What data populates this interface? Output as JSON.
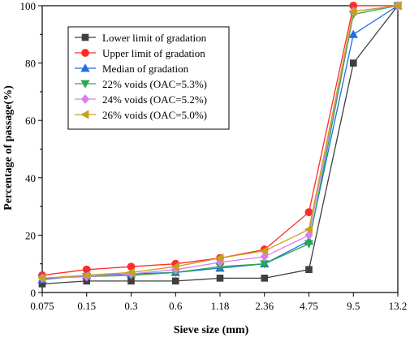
{
  "chart_data": {
    "type": "line",
    "xlabel": "Sieve size (mm)",
    "ylabel": "Percentage of passage(%)",
    "categories": [
      "0.075",
      "0.15",
      "0.3",
      "0.6",
      "1.18",
      "2.36",
      "4.75",
      "9.5",
      "13.2"
    ],
    "ylim": [
      0,
      100
    ],
    "yticks": [
      0,
      20,
      40,
      60,
      80,
      100
    ],
    "grid": false,
    "legend_position": "top-left",
    "series": [
      {
        "name": "Lower limit of gradation",
        "color": "#3f3f3f",
        "marker": "square",
        "values": [
          3,
          4,
          4,
          4,
          5,
          5,
          8,
          80,
          100
        ]
      },
      {
        "name": "Upper limit of gradation",
        "color": "#ff2a2a",
        "marker": "circle",
        "values": [
          6,
          8,
          9,
          10,
          12,
          15,
          28,
          100,
          100
        ]
      },
      {
        "name": "Median of gradation",
        "color": "#1f6fe0",
        "marker": "triangle-up",
        "values": [
          4.5,
          6,
          6.5,
          7,
          8.5,
          10,
          18,
          90,
          100
        ]
      },
      {
        "name": "22% voids (OAC=5.3%)",
        "color": "#2aa84a",
        "marker": "triangle-down",
        "values": [
          5,
          5.5,
          6,
          7,
          9,
          10,
          17,
          97,
          100
        ]
      },
      {
        "name": "24% voids (OAC=5.2%)",
        "color": "#d97cf0",
        "marker": "diamond",
        "values": [
          5,
          5.5,
          6.5,
          8,
          10.5,
          12.5,
          20,
          98,
          100
        ]
      },
      {
        "name": "26% voids (OAC=5.0%)",
        "color": "#c8a020",
        "marker": "triangle-left",
        "values": [
          5,
          6,
          7,
          9,
          12,
          14.5,
          22,
          98,
          100
        ]
      }
    ]
  }
}
